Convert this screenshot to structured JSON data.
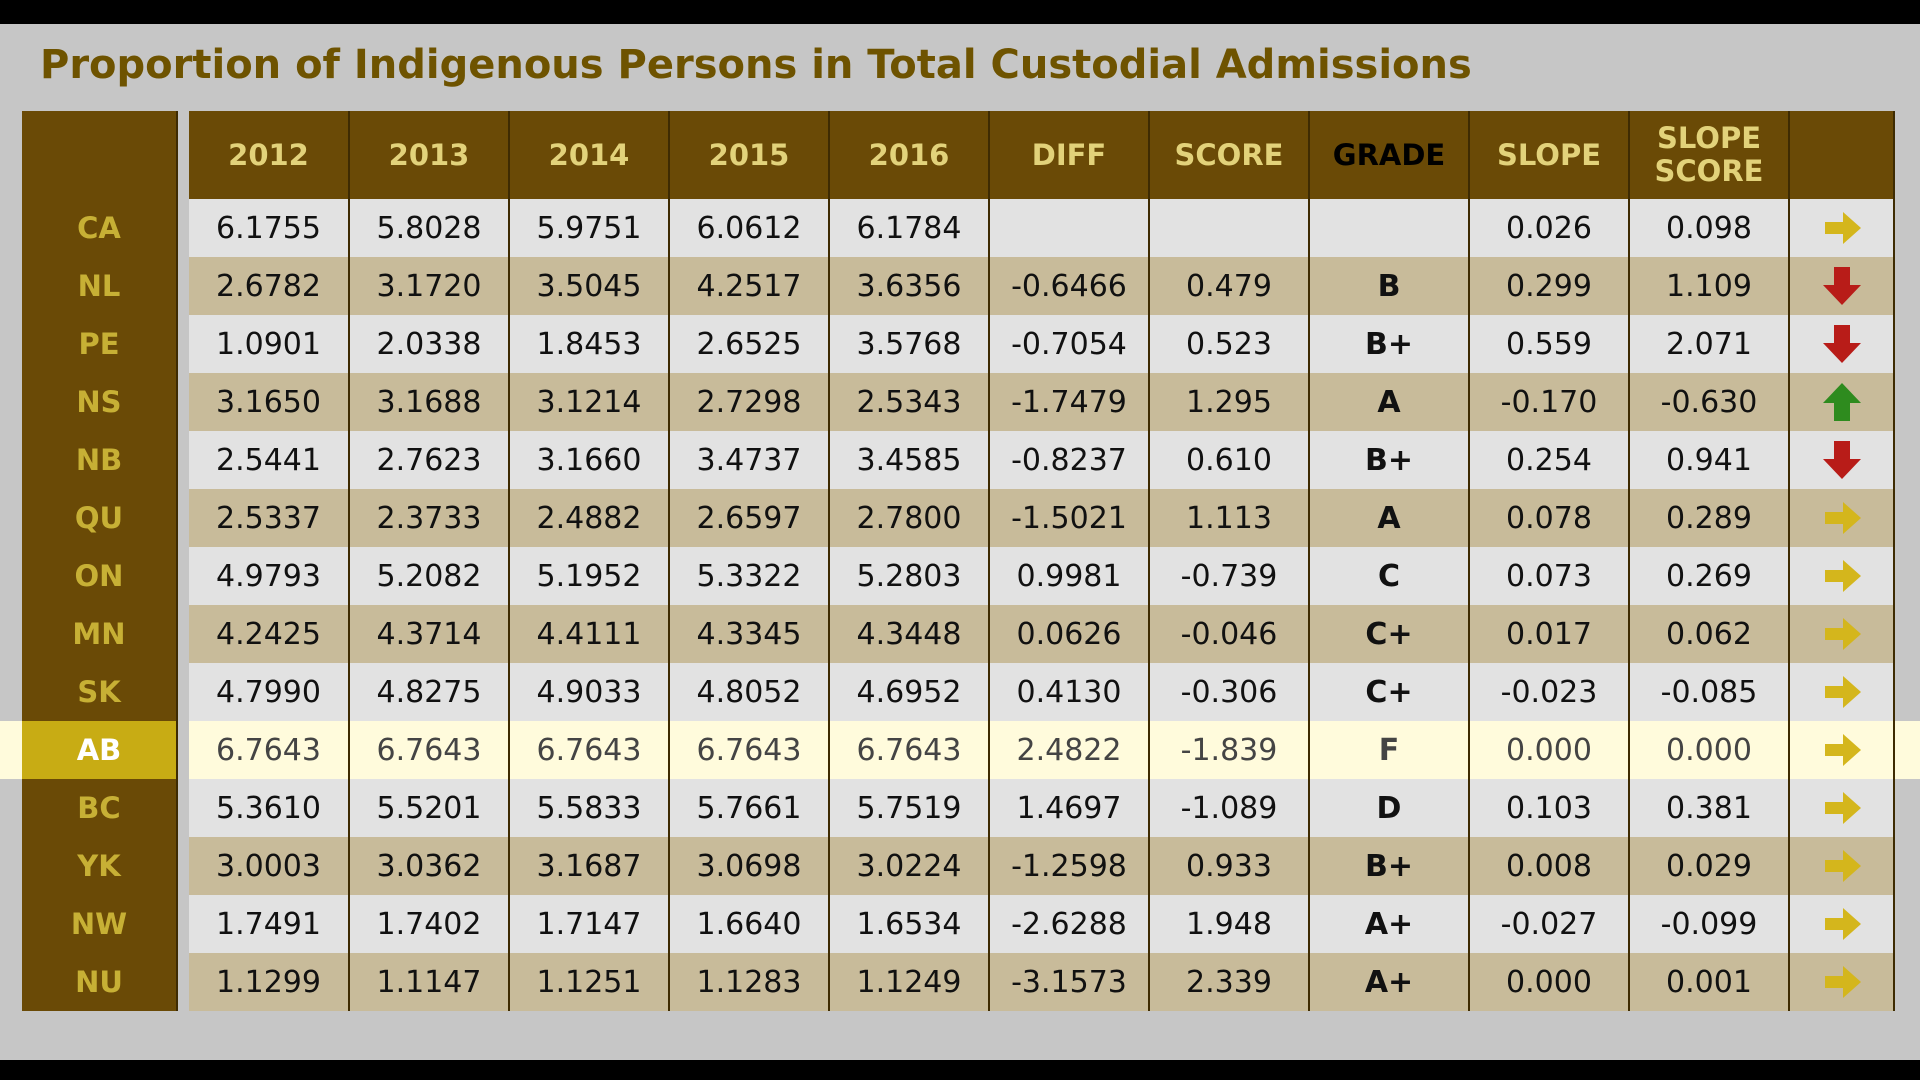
{
  "title": "Proportion of Indigenous Persons in Total Custodial Admissions",
  "headers": [
    "2012",
    "2013",
    "2014",
    "2015",
    "2016",
    "DIFF",
    "SCORE",
    "GRADE",
    "SLOPE",
    "SLOPE SCORE"
  ],
  "header_lines": {
    "slope_score": [
      "SLOPE",
      "SCORE"
    ]
  },
  "colors": {
    "arrow_up": "#2e8b1e",
    "arrow_down": "#b81c18",
    "arrow_right": "#d4b61c",
    "highlight": "#c8ac14"
  },
  "rows": [
    {
      "label": "CA",
      "values": [
        "6.1755",
        "5.8028",
        "5.9751",
        "6.0612",
        "6.1784",
        "",
        "",
        "",
        "0.026",
        "0.098"
      ],
      "trend": "right",
      "trend_icon": "arrow-right-icon"
    },
    {
      "label": "NL",
      "values": [
        "2.6782",
        "3.1720",
        "3.5045",
        "4.2517",
        "3.6356",
        "-0.6466",
        "0.479",
        "B",
        "0.299",
        "1.109"
      ],
      "trend": "down",
      "trend_icon": "arrow-down-icon"
    },
    {
      "label": "PE",
      "values": [
        "1.0901",
        "2.0338",
        "1.8453",
        "2.6525",
        "3.5768",
        "-0.7054",
        "0.523",
        "B+",
        "0.559",
        "2.071"
      ],
      "trend": "down",
      "trend_icon": "arrow-down-icon"
    },
    {
      "label": "NS",
      "values": [
        "3.1650",
        "3.1688",
        "3.1214",
        "2.7298",
        "2.5343",
        "-1.7479",
        "1.295",
        "A",
        "-0.170",
        "-0.630"
      ],
      "trend": "up",
      "trend_icon": "arrow-up-icon"
    },
    {
      "label": "NB",
      "values": [
        "2.5441",
        "2.7623",
        "3.1660",
        "3.4737",
        "3.4585",
        "-0.8237",
        "0.610",
        "B+",
        "0.254",
        "0.941"
      ],
      "trend": "down",
      "trend_icon": "arrow-down-icon"
    },
    {
      "label": "QU",
      "values": [
        "2.5337",
        "2.3733",
        "2.4882",
        "2.6597",
        "2.7800",
        "-1.5021",
        "1.113",
        "A",
        "0.078",
        "0.289"
      ],
      "trend": "right",
      "trend_icon": "arrow-right-icon"
    },
    {
      "label": "ON",
      "values": [
        "4.9793",
        "5.2082",
        "5.1952",
        "5.3322",
        "5.2803",
        "0.9981",
        "-0.739",
        "C",
        "0.073",
        "0.269"
      ],
      "trend": "right",
      "trend_icon": "arrow-right-icon"
    },
    {
      "label": "MN",
      "values": [
        "4.2425",
        "4.3714",
        "4.4111",
        "4.3345",
        "4.3448",
        "0.0626",
        "-0.046",
        "C+",
        "0.017",
        "0.062"
      ],
      "trend": "right",
      "trend_icon": "arrow-right-icon"
    },
    {
      "label": "SK",
      "values": [
        "4.7990",
        "4.8275",
        "4.9033",
        "4.8052",
        "4.6952",
        "0.4130",
        "-0.306",
        "C+",
        "-0.023",
        "-0.085"
      ],
      "trend": "right",
      "trend_icon": "arrow-right-icon"
    },
    {
      "label": "AB",
      "values": [
        "6.7643",
        "6.7643",
        "6.7643",
        "6.7643",
        "6.7643",
        "2.4822",
        "-1.839",
        "F",
        "0.000",
        "0.000"
      ],
      "trend": "right",
      "trend_icon": "arrow-right-icon",
      "highlighted": true
    },
    {
      "label": "BC",
      "values": [
        "5.3610",
        "5.5201",
        "5.5833",
        "5.7661",
        "5.7519",
        "1.4697",
        "-1.089",
        "D",
        "0.103",
        "0.381"
      ],
      "trend": "right",
      "trend_icon": "arrow-right-icon"
    },
    {
      "label": "YK",
      "values": [
        "3.0003",
        "3.0362",
        "3.1687",
        "3.0698",
        "3.0224",
        "-1.2598",
        "0.933",
        "B+",
        "0.008",
        "0.029"
      ],
      "trend": "right",
      "trend_icon": "arrow-right-icon"
    },
    {
      "label": "NW",
      "values": [
        "1.7491",
        "1.7402",
        "1.7147",
        "1.6640",
        "1.6534",
        "-2.6288",
        "1.948",
        "A+",
        "-0.027",
        "-0.099"
      ],
      "trend": "right",
      "trend_icon": "arrow-right-icon"
    },
    {
      "label": "NU",
      "values": [
        "1.1299",
        "1.1147",
        "1.1251",
        "1.1283",
        "1.1249",
        "-3.1573",
        "2.339",
        "A+",
        "0.000",
        "0.001"
      ],
      "trend": "right",
      "trend_icon": "arrow-right-icon"
    }
  ]
}
